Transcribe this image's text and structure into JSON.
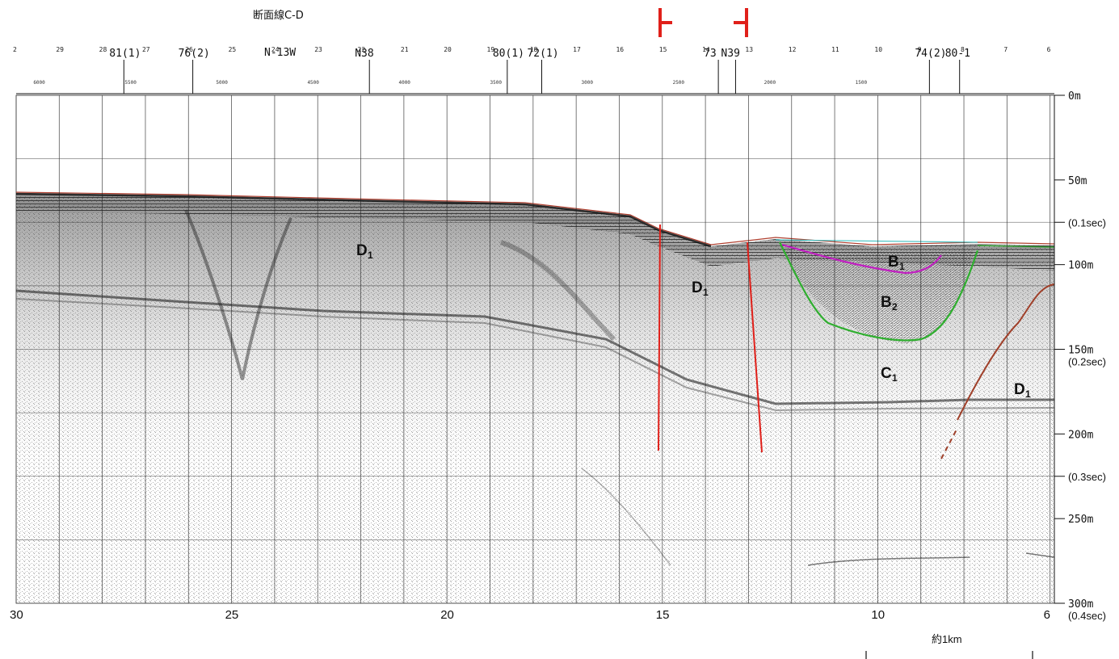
{
  "section_title": "断面線C-D",
  "line_top_label": "N-13W",
  "top_markers": [
    {
      "text": "81(1)",
      "fix": 27.5
    },
    {
      "text": "76(2)",
      "fix": 25.9
    },
    {
      "text": "N38",
      "fix": 21.8
    },
    {
      "text": "80(1)",
      "fix": 18.6
    },
    {
      "text": "72(1)",
      "fix": 17.8
    },
    {
      "text": "73",
      "fix": 13.7
    },
    {
      "text": "N39",
      "fix": 13.3
    },
    {
      "text": "74(2)",
      "fix": 8.8
    },
    {
      "text": "80-1",
      "fix": 8.1
    }
  ],
  "fix_tick_numbers": [
    "2",
    "29",
    "28",
    "27",
    "26",
    "25",
    "24",
    "23",
    "22",
    "21",
    "20",
    "19",
    "18",
    "17",
    "16",
    "15",
    "14",
    "13",
    "12",
    "11",
    "10",
    "9",
    "8",
    "7",
    "6"
  ],
  "distance_labels": [
    "6000",
    "5500",
    "5000",
    "4500",
    "4000",
    "3500",
    "3000",
    "2500",
    "2000",
    "1500"
  ],
  "depth_labels": [
    "0m",
    "50m",
    "100m",
    "150m",
    "200m",
    "250m",
    "300m"
  ],
  "time_labels": [
    "(0.1sec)",
    "(0.2sec)",
    "(0.3sec)",
    "(0.4sec)"
  ],
  "x_axis_labels": [
    "30",
    "25",
    "20",
    "15",
    "10",
    "6"
  ],
  "scale_bar_label": "約1km",
  "units": [
    {
      "main": "D",
      "sub": "1",
      "pos": "upper-left"
    },
    {
      "main": "D",
      "sub": "1",
      "pos": "center"
    },
    {
      "main": "B",
      "sub": "1",
      "pos": "basin-top"
    },
    {
      "main": "B",
      "sub": "2",
      "pos": "basin-mid"
    },
    {
      "main": "C",
      "sub": "1",
      "pos": "basin-low"
    },
    {
      "main": "D",
      "sub": "1",
      "pos": "right"
    }
  ],
  "colors": {
    "fault": "#e0201a",
    "b1_boundary": "#c020c0",
    "b2_boundary": "#2fae2f",
    "seafloor_line": "#b04030",
    "right_fault": "#a0402a",
    "seafloor_right": "#2f9a2f",
    "top_right_line": "#40c0c0"
  }
}
